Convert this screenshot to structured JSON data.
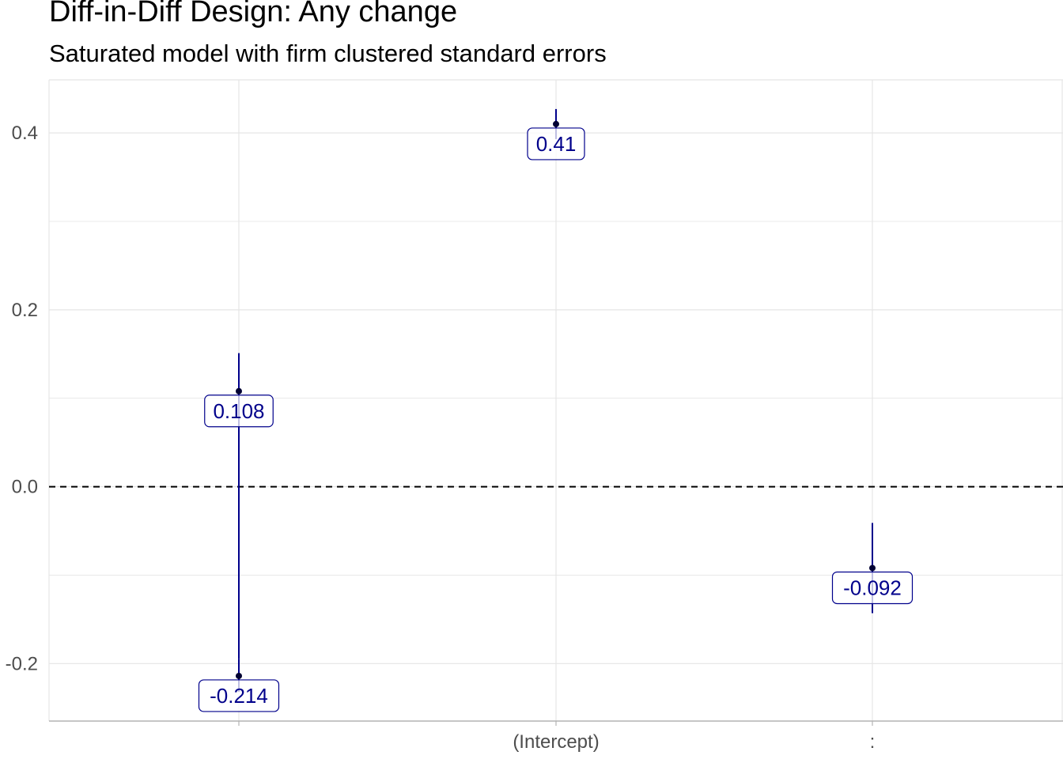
{
  "chart_data": {
    "type": "errorbar",
    "title": "Diff-in-Diff Design: Any change",
    "subtitle": "Saturated model with firm clustered standard errors",
    "xlabel": "",
    "ylabel": "",
    "categories": [
      "",
      "(Intercept)",
      ":"
    ],
    "ylim": [
      -0.265,
      0.46
    ],
    "yticks": [
      -0.2,
      0.0,
      0.2,
      0.4
    ],
    "ytick_labels": [
      "-0.2",
      "0.0",
      "0.2",
      "0.4"
    ],
    "grid": true,
    "reference_line": {
      "y": 0,
      "style": "dashed"
    },
    "points": [
      {
        "category": "",
        "estimate": 0.108,
        "label": "0.108",
        "lower": -0.195,
        "upper": 0.151
      },
      {
        "category": "",
        "estimate": -0.214,
        "label": "-0.214",
        "lower": -0.232,
        "upper": -0.195
      },
      {
        "category": "(Intercept)",
        "estimate": 0.41,
        "label": "0.41",
        "lower": 0.393,
        "upper": 0.427
      },
      {
        "category": ":",
        "estimate": -0.092,
        "label": "-0.092",
        "lower": -0.143,
        "upper": -0.041
      }
    ],
    "colors": {
      "point": "#00008b",
      "grid": "#e5e5e5",
      "axis": "#b3b3b3",
      "ref_line": "#000000"
    }
  }
}
